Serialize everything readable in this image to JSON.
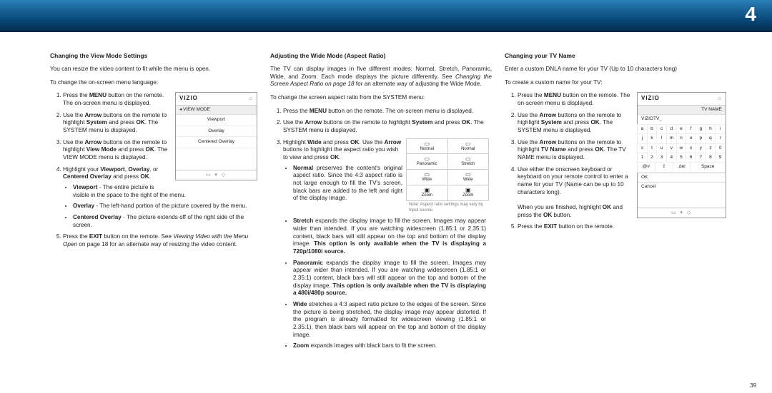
{
  "page_number_banner": "4",
  "footer_page": "39",
  "col1": {
    "heading": "Changing the View Mode Settings",
    "intro": "You can resize the video content to fit while the menu is open.",
    "sub": "To change the on-screen menu language:",
    "menu": {
      "brand": "VIZIO",
      "section": "VIEW MODE",
      "items": [
        "Viewport",
        "Overlay",
        "Centered Overlay"
      ]
    },
    "steps": [
      "Press the <b>MENU</b> button on the remote. The on-screen menu is displayed.",
      "Use the <b>Arrow</b> buttons on the remote to highlight <b>System</b> and press <b>OK</b>. The SYSTEM menu is displayed.",
      "Use the <b>Arrow</b> buttons on the remote to highlight <b>View Mode</b> and press <b>OK</b>. The VIEW MODE menu is displayed.",
      "Highlight your <b>Viewport</b>, <b>Overlay</b>, or <b>Centered Overlay</b> and press <b>OK</b>.",
      "Press the <b>EXIT</b> button on the remote. See <i>Viewing Video with the Menu Open</i> on page 18 for an alternate way of resizing the video content."
    ],
    "sub_bullets": [
      "<b>Viewport</b> - The entire picture is visible in the space to the right of the menu.",
      "<b>Overlay</b> - The left-hand portion of the picture covered by the menu.",
      "<b>Centered Overlay</b> - The picture extends off of the right side of the screen."
    ]
  },
  "col2": {
    "heading": "Adjusting the Wide Mode (Aspect Ratio)",
    "intro": "The TV can display images in five different modes: Normal, Stretch, Panoramic, Wide, and Zoom. Each mode displays the picture differently. See <i>Changing the Screen Aspect Ratio on page 18</i> for an alternate way of adjusting the Wide Mode.",
    "sub": "To change the screen aspect ratio from the SYSTEM menu:",
    "aspect": {
      "rows": [
        [
          {
            "ic": "▭",
            "l": "Normal"
          },
          {
            "ic": "▭",
            "l": "Normal"
          }
        ],
        [
          {
            "ic": "▭",
            "l": "Panoramic"
          },
          {
            "ic": "▭",
            "l": "Stretch"
          }
        ],
        [
          {
            "ic": "▭",
            "l": "Wide"
          },
          {
            "ic": "▭",
            "l": "Wide"
          }
        ],
        [
          {
            "ic": "▣",
            "l": "Zoom"
          },
          {
            "ic": "▣",
            "l": "Zoom"
          }
        ]
      ],
      "note": "Note: Aspect ratio settings may vary by Input source."
    },
    "steps": [
      "Press the <b>MENU</b> button on the remote. The on-screen menu is displayed.",
      "Use the <b>Arrow</b> buttons on the remote to highlight <b>System</b> and press <b>OK</b>. The SYSTEM menu is displayed.",
      "Highlight <b>Wide</b> and press <b>OK</b>. Use the <b>Arrow</b> buttons to highlight the aspect ratio you wish to view and press <b>OK</b>."
    ],
    "modes": [
      "<b>Normal</b> preserves the content's original aspect ratio. Since the 4:3 aspect ratio is not large enough to fill the TV's screen, black bars are added to the left and right of the display image.",
      "<b>Stretch</b> expands the display image to fill the screen. Images may appear wider than intended. If you are watching widescreen (1.85:1 or 2.35:1) content, black bars will still appear on the top and bottom of the display image. <b>This option is only available when the TV is displaying a 720p/1080i source.</b>",
      "<b>Panoramic</b> expands the display image to fill the screen. Images may appear wider than intended. If you are watching widescreen (1.85:1 or 2.35:1) content, black bars will still appear on the top and bottom of the display image. <b>This option is only available when the TV is displaying a 480i/480p source.</b>",
      "<b>Wide</b> stretches a 4:3 aspect ratio picture to the edges of the screen. Since the picture is being stretched, the display image may appear distorted. If the program is already formatted for widescreen viewing (1.85:1 or 2.35:1), then black bars will appear on the top and bottom of the display image.",
      "<b>Zoom</b> expands images with black bars to fit the screen."
    ]
  },
  "col3": {
    "heading": "Changing your TV Name",
    "intro": "Enter a custom DNLA name for your TV (Up to 10 characters long)",
    "sub": "To create a custom name for your TV:",
    "menu": {
      "brand": "VIZIO",
      "section": "TV NAME",
      "input": "VIZIOTV_",
      "rows": [
        "abcdefghi",
        "jklmnopqr",
        "stuvwxyz0",
        "123456789"
      ],
      "symrow": [
        "@#",
        "⇧",
        ".del",
        "Space",
        ""
      ],
      "btns": [
        "OK",
        "Cancel"
      ]
    },
    "steps": [
      "Press the <b>MENU</b> button on the remote. The on-screen menu is displayed.",
      "Use the <b>Arrow</b> buttons on the remote to highlight <b>System</b> and press <b>OK</b>. The SYSTEM menu is displayed.",
      "Use the <b>Arrow</b> buttons on the remote to highlight <b>TV Name</b> and press <b>OK</b>. The TV NAME menu is displayed.",
      "Use either the onscreen keyboard or keyboard on your remote control to enter a name for your TV (Name can be up to 10 characters long).<br><br>When you are finished, highlight <b>OK</b> and press the <b>OK</b> button.",
      "Press the <b>EXIT</b> button on the remote."
    ]
  }
}
